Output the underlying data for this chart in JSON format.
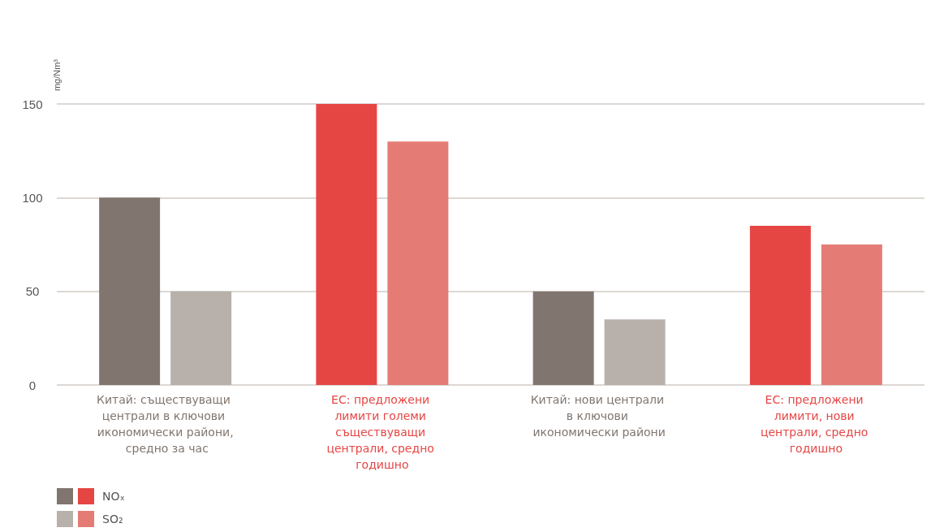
{
  "chart_data": {
    "type": "bar",
    "ylabel": "mg/Nm³",
    "categories": [
      "Китай: съществуващи централи в ключови икономически райони, средно за час",
      "ЕС: предложени лимити големи съществуващи централи, средно годишно",
      "Китай: нови централи в ключови икономически райони",
      "ЕС: предложени лимити, нови централи, средно годишно"
    ],
    "series": [
      {
        "name": "NOₓ",
        "colors": [
          "#80766f",
          "#e54644",
          "#80766f",
          "#e54644"
        ],
        "values": [
          100,
          150,
          50,
          85
        ]
      },
      {
        "name": "SO₂",
        "colors": [
          "#b8b0ab",
          "#e47c75",
          "#b8b0ab",
          "#e47c75"
        ],
        "values": [
          50,
          130,
          35,
          75
        ]
      }
    ],
    "ylim": [
      0,
      150
    ],
    "yticks": [
      0,
      50,
      100,
      150
    ],
    "grid": "y",
    "legend": "bottom left"
  }
}
